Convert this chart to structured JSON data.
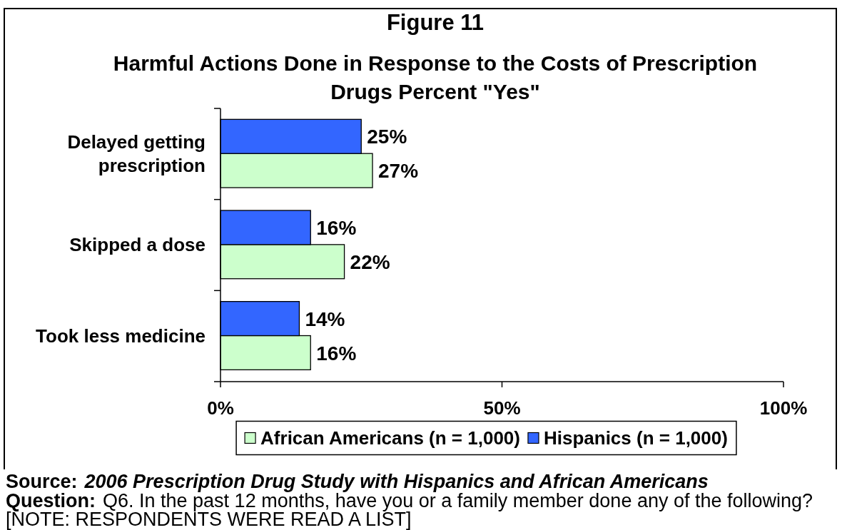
{
  "chart_data": {
    "type": "bar",
    "orientation": "horizontal",
    "title": "Figure 11",
    "subtitle": "Harmful Actions Done in Response to the Costs of Prescription Drugs Percent \"Yes\"",
    "categories": [
      "Delayed getting prescription",
      "Skipped a dose",
      "Took less medicine"
    ],
    "series": [
      {
        "name": "African Americans (n = 1,000)",
        "color": "#ccffcc",
        "values": [
          27,
          22,
          16
        ],
        "value_labels": [
          "27%",
          "22%",
          "16%"
        ]
      },
      {
        "name": "Hispanics (n = 1,000)",
        "color": "#3366ff",
        "values": [
          25,
          16,
          14
        ],
        "value_labels": [
          "25%",
          "16%",
          "14%"
        ]
      }
    ],
    "xlim": [
      0,
      100
    ],
    "xticks": [
      {
        "value": 0,
        "label": "0%"
      },
      {
        "value": 50,
        "label": "50%"
      },
      {
        "value": 100,
        "label": "100%"
      }
    ],
    "legend": "bottom",
    "annotations": [
      "Source: 2006 Prescription Drug Study with Hispanics and African Americans",
      "Question: Q6. In the past 12 months, have you or a family member done any of the following?",
      "[NOTE: RESPONDENTS WERE READ A LIST]"
    ]
  }
}
